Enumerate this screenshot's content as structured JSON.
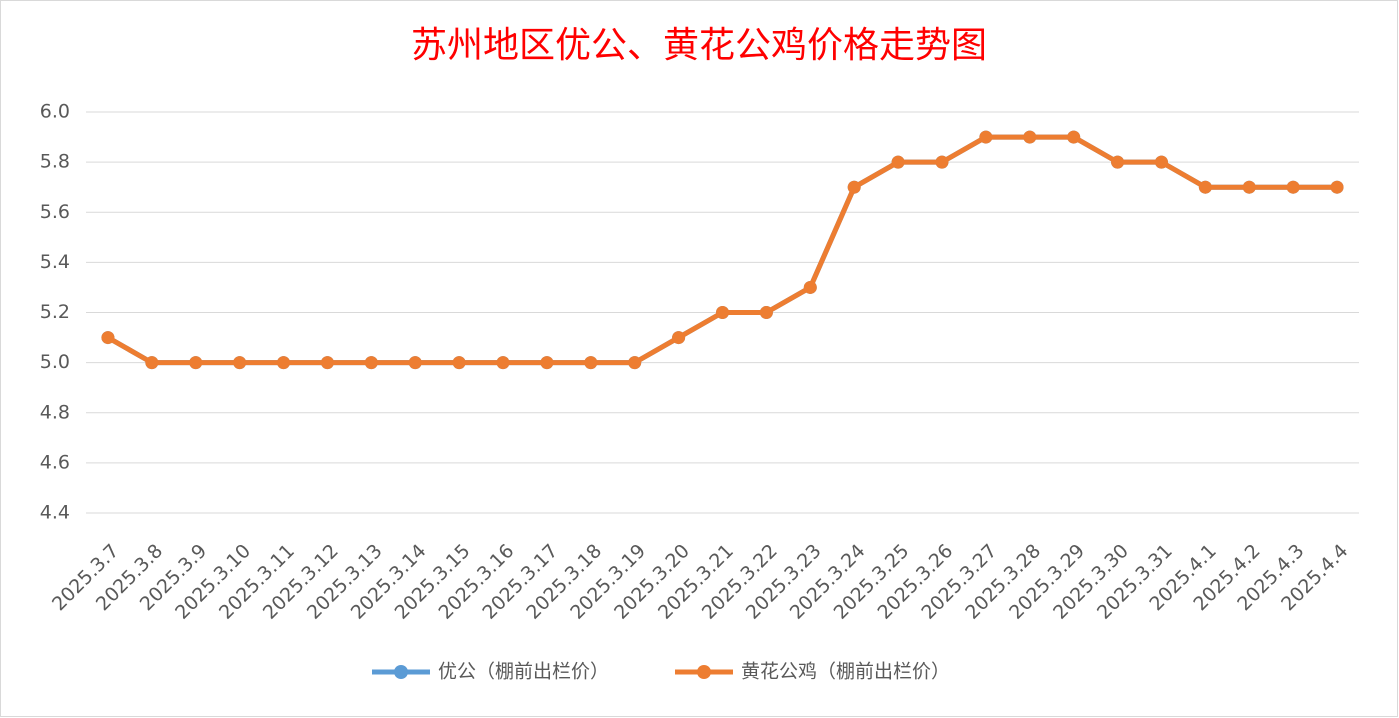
{
  "chart_data": {
    "type": "line",
    "title": "苏州地区优公、黄花公鸡价格走势图",
    "categories": [
      "2025.3.7",
      "2025.3.8",
      "2025.3.9",
      "2025.3.10",
      "2025.3.11",
      "2025.3.12",
      "2025.3.13",
      "2025.3.14",
      "2025.3.15",
      "2025.3.16",
      "2025.3.17",
      "2025.3.18",
      "2025.3.19",
      "2025.3.20",
      "2025.3.21",
      "2025.3.22",
      "2025.3.23",
      "2025.3.24",
      "2025.3.25",
      "2025.3.26",
      "2025.3.27",
      "2025.3.28",
      "2025.3.29",
      "2025.3.30",
      "2025.3.31",
      "2025.4.1",
      "2025.4.2",
      "2025.4.3",
      "2025.4.4"
    ],
    "series": [
      {
        "name": "优公（棚前出栏价）",
        "color": "#5b9bd5",
        "values": [
          5.1,
          5.0,
          5.0,
          5.0,
          5.0,
          5.0,
          5.0,
          5.0,
          5.0,
          5.0,
          5.0,
          5.0,
          5.0,
          5.1,
          5.2,
          5.2,
          5.3,
          5.7,
          5.8,
          5.8,
          5.9,
          5.9,
          5.9,
          5.8,
          5.8,
          5.7,
          5.7,
          5.7,
          5.7
        ]
      },
      {
        "name": "黄花公鸡（棚前出栏价）",
        "color": "#ed7d31",
        "values": [
          5.1,
          5.0,
          5.0,
          5.0,
          5.0,
          5.0,
          5.0,
          5.0,
          5.0,
          5.0,
          5.0,
          5.0,
          5.0,
          5.1,
          5.2,
          5.2,
          5.3,
          5.7,
          5.8,
          5.8,
          5.9,
          5.9,
          5.9,
          5.8,
          5.8,
          5.7,
          5.7,
          5.7,
          5.7
        ]
      }
    ],
    "ylim": [
      4.4,
      6.0
    ],
    "yticks": [
      4.4,
      4.6,
      4.8,
      {
        "value": 5.0,
        "label": "5.0"
      },
      5.2,
      5.4,
      5.6,
      5.8,
      {
        "value": 6.0,
        "label": "6.0"
      }
    ],
    "grid": true,
    "legend": "bottom"
  }
}
